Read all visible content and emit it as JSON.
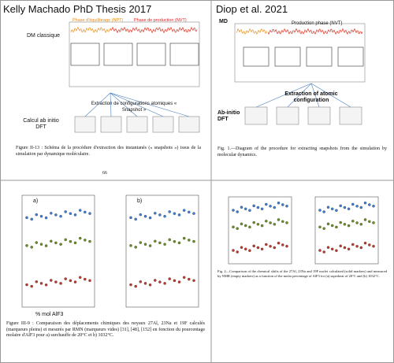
{
  "left_top": {
    "header": "Kelly Machado PhD Thesis 2017",
    "md_label": "DM classique",
    "npt_label": "Phase d'équilibrage (NPT)",
    "nvt_label": "Phase de production (NVT)",
    "extraction_label": "Extraction de configurations atomiques « Snapshot »",
    "dft_label": "Calcul ab initio DFT",
    "caption": "Figure II-13 : Schéma de la procédure d'extraction des instantanés (« snapshots ») issus de la simulation par dynamique moléculaire.",
    "page_number": "66"
  },
  "right_top": {
    "header": "Diop et al.  2021",
    "md_label": "MD",
    "production_label": "Production phase (NVT)",
    "extraction_label": "Extraction of atomic configuration",
    "dft_label": "Ab-initio DFT",
    "caption": "Fig. 1.—Diagram of the procedure for extracting snapshots from the simulation by molecular dynamics."
  },
  "left_bottom": {
    "panel_a": "a)",
    "panel_b": "b)",
    "x_label": "% mol AlF3",
    "caption": "Figure III-9 : Comparaison des déplacements chimiques des noyaux 27Al, 23Na et 19F calculés (marqueurs pleins) et mesurés par RMN (marqueurs vides) [31], [48], [152] en fonction du pourcentage molaire d'AlF3 pour a) surchauffe de 20°C et b) 1032°C."
  },
  "right_bottom": {
    "caption": "Fig. 2—Comparison of the chemical shifts of the 27Al, 23Na and 19F nuclei calculated (solid markers) and measured by NMR (empty markers) as a function of the molar percentage of AlF3 for (a) superheat of 20°C and (b) 1032°C."
  }
}
